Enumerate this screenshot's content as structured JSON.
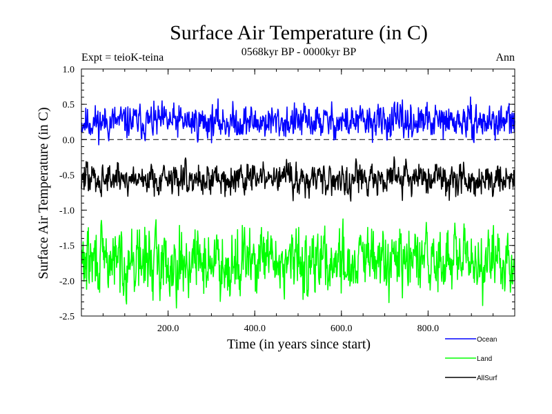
{
  "chart_data": {
    "type": "line",
    "title": "Surface Air Temperature (in C)",
    "subtitle": "0568kyr BP - 0000kyr BP",
    "experiment_label": "Expt = teioK-teina",
    "season_label": "Ann",
    "xlabel": "Time (in years since start)",
    "ylabel": "Surface Air Temperature (in C)",
    "xlim": [
      0,
      1000
    ],
    "ylim": [
      -2.5,
      1.0
    ],
    "x_ticks": [
      200,
      400,
      600,
      800
    ],
    "x_tick_labels": [
      "200.0",
      "400.0",
      "600.0",
      "800.0"
    ],
    "y_ticks": [
      1.0,
      0.5,
      0.0,
      -0.5,
      -1.0,
      -1.5,
      -2.0,
      -2.5
    ],
    "y_tick_labels": [
      "1.0",
      "0.5",
      "0.0",
      "-0.5",
      "-1.0",
      "-1.5",
      "-2.0",
      "-2.5"
    ],
    "reference_line": {
      "y": 0.0,
      "style": "dashed"
    },
    "legend_position": "bottom-right",
    "n_points": 1000,
    "series": [
      {
        "name": "Ocean",
        "color": "#0000ff",
        "mean": 0.25,
        "amplitude": 0.17,
        "min": -0.2,
        "max": 0.67,
        "seed": 11
      },
      {
        "name": "Land",
        "color": "#00ff00",
        "mean": -1.73,
        "amplitude": 0.33,
        "min": -2.42,
        "max": -0.97,
        "seed": 29
      },
      {
        "name": "AllSurf",
        "color": "#000000",
        "mean": -0.55,
        "amplitude": 0.16,
        "min": -1.0,
        "max": -0.05,
        "seed": 47
      }
    ]
  }
}
